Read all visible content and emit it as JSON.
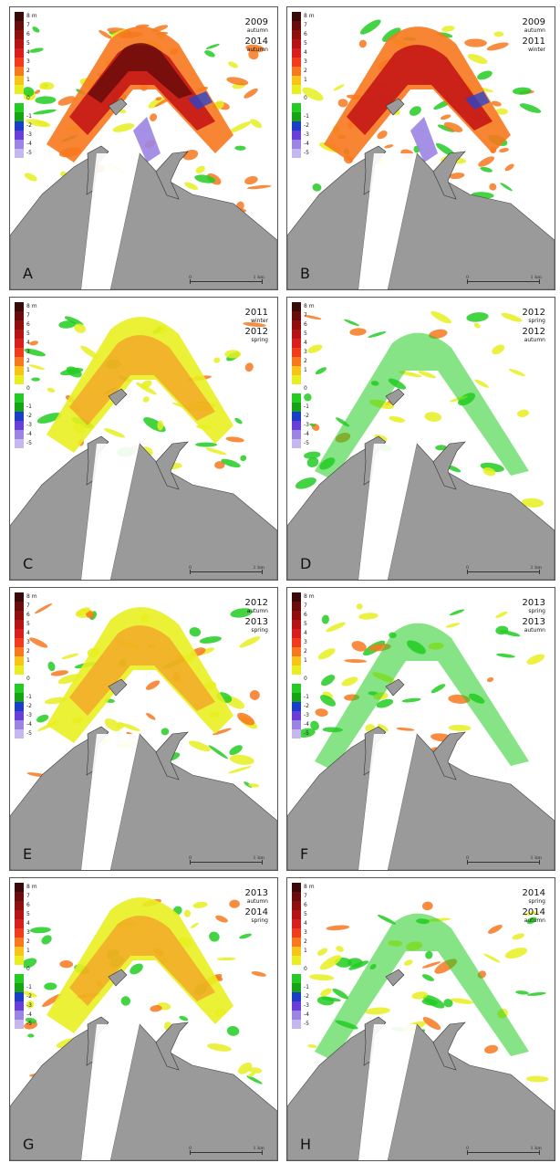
{
  "colorbar": {
    "levels": [
      {
        "label": "8 m",
        "color": "#3a0a08"
      },
      {
        "label": "7",
        "color": "#6b0c0c"
      },
      {
        "label": "6",
        "color": "#8f0f0f"
      },
      {
        "label": "5",
        "color": "#b51414"
      },
      {
        "label": "4",
        "color": "#d91e1e"
      },
      {
        "label": "3",
        "color": "#f03c1c"
      },
      {
        "label": "2",
        "color": "#f7781e"
      },
      {
        "label": "1",
        "color": "#f9c41a"
      },
      {
        "label": "",
        "color": "#e8ef20"
      },
      {
        "label": "0",
        "color": "#ffffff"
      },
      {
        "label": "",
        "color": "#22cc22"
      },
      {
        "label": "-1",
        "color": "#16a416"
      },
      {
        "label": "-2",
        "color": "#1a3ec8"
      },
      {
        "label": "-3",
        "color": "#6a3ed8"
      },
      {
        "label": "-4",
        "color": "#9c84e2"
      },
      {
        "label": "-5",
        "color": "#c6b8ee"
      }
    ]
  },
  "colors": {
    "land": "#9a9a9a",
    "high": "#c41616",
    "mid": "#f7781e",
    "low": "#e8ef20",
    "neg": "#22cc22",
    "deep": "#2a44c8",
    "violet": "#9c84e2"
  },
  "scalebar": {
    "start": "0",
    "end": "1 km"
  },
  "panels": [
    {
      "letter": "A",
      "from_year": "2009",
      "from_season": "autumn",
      "to_year": "2014",
      "to_season": "autumn",
      "intensity": 3
    },
    {
      "letter": "B",
      "from_year": "2009",
      "from_season": "autumn",
      "to_year": "2011",
      "to_season": "winter",
      "intensity": 2
    },
    {
      "letter": "C",
      "from_year": "2011",
      "from_season": "winter",
      "to_year": "2012",
      "to_season": "spring",
      "intensity": 1
    },
    {
      "letter": "D",
      "from_year": "2012",
      "from_season": "spring",
      "to_year": "2012",
      "to_season": "autumn",
      "intensity": 0
    },
    {
      "letter": "E",
      "from_year": "2012",
      "from_season": "autumn",
      "to_year": "2013",
      "to_season": "spring",
      "intensity": 1
    },
    {
      "letter": "F",
      "from_year": "2013",
      "from_season": "spring",
      "to_year": "2013",
      "to_season": "autumn",
      "intensity": 0
    },
    {
      "letter": "G",
      "from_year": "2013",
      "from_season": "autumn",
      "to_year": "2014",
      "to_season": "spring",
      "intensity": 1
    },
    {
      "letter": "H",
      "from_year": "2014",
      "from_season": "spring",
      "to_year": "2014",
      "to_season": "autumn",
      "intensity": 0
    }
  ]
}
